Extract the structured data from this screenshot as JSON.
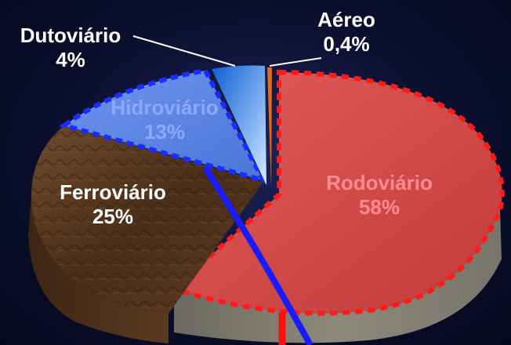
{
  "chart_data": {
    "type": "pie",
    "style": "3d-exploded",
    "slices": [
      {
        "name": "Rodoviário",
        "value": 58,
        "value_label": "58%",
        "color": "#d24b4b",
        "label_color": "#ff8c8c",
        "border": "#ff1a1a"
      },
      {
        "name": "Ferroviário",
        "value": 25,
        "value_label": "25%",
        "color": "#5b3b22",
        "label_color": "#ffffff",
        "border": ""
      },
      {
        "name": "Hidroviário",
        "value": 13,
        "value_label": "13%",
        "color": "#5a86e6",
        "label_color": "#8ea8ff",
        "border": "#1a2cff"
      },
      {
        "name": "Dutoviário",
        "value": 4,
        "value_label": "4%",
        "color": "#1f73d8",
        "label_color": "#ffffff",
        "border": ""
      },
      {
        "name": "Aéreo",
        "value": 0.4,
        "value_label": "0,4%",
        "color": "#e06a1e",
        "label_color": "#ffffff",
        "border": ""
      }
    ],
    "overlay_lines": [
      {
        "color": "#1a1aff",
        "description": "blue curve crossing the chart"
      },
      {
        "color": "#ff1010",
        "description": "red line segment at bottom"
      }
    ]
  }
}
